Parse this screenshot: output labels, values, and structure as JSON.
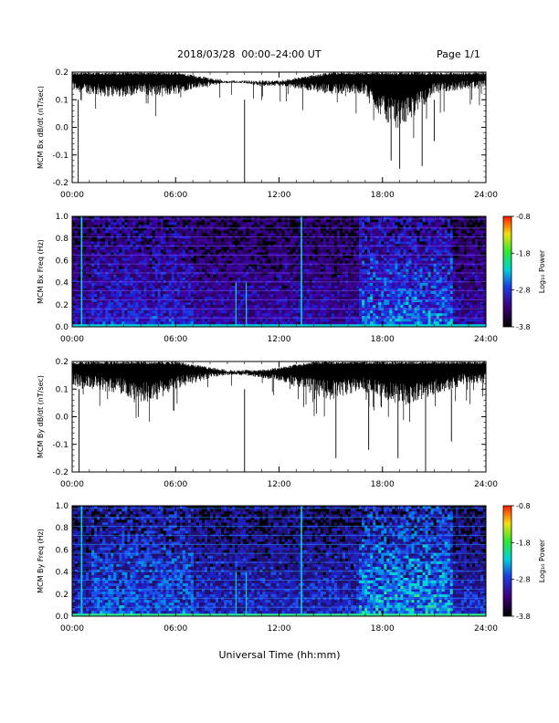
{
  "header": {
    "date_range": "2018/03/28  00:00–24:00 UT",
    "page": "Page 1/1"
  },
  "xlabel": "Universal Time (hh:mm)",
  "colors": {
    "trace": "#000000",
    "accent_line": "#00d8d8",
    "background": "#ffffff"
  },
  "chart_data": [
    {
      "type": "line",
      "id": "bx_dbdt",
      "ylabel": "MCM Bx dB/dt (nT/sec)",
      "xlim": [
        0,
        24
      ],
      "ylim": [
        -0.2,
        0.2
      ],
      "x_ticks": [
        "00:00",
        "06:00",
        "12:00",
        "18:00",
        "24:00"
      ],
      "y_ticks": [
        "-0.2",
        "-0.1",
        "0.0",
        "0.1",
        "0.2"
      ],
      "grid": false,
      "series": [
        {
          "x": [
            0,
            0.5,
            1,
            2,
            3,
            4,
            5,
            6,
            7,
            8,
            9,
            10,
            11,
            12,
            13,
            14,
            15,
            16,
            17,
            18,
            19,
            20,
            21,
            22,
            23,
            24
          ],
          "y_upper": [
            0.2,
            0.2,
            0.2,
            0.2,
            0.2,
            0.2,
            0.2,
            0.2,
            0.19,
            0.18,
            0.17,
            0.17,
            0.17,
            0.17,
            0.18,
            0.19,
            0.2,
            0.2,
            0.2,
            0.2,
            0.2,
            0.2,
            0.2,
            0.2,
            0.2,
            0.2
          ],
          "y_lower": [
            0.14,
            0.12,
            0.12,
            0.11,
            0.11,
            0.12,
            0.11,
            0.12,
            0.14,
            0.15,
            0.16,
            0.16,
            0.15,
            0.15,
            0.14,
            0.13,
            0.12,
            0.12,
            0.12,
            0.03,
            0.0,
            0.05,
            0.12,
            0.13,
            0.14,
            0.14
          ]
        }
      ]
    },
    {
      "type": "heatmap",
      "id": "bx_spec",
      "ylabel": "MCM Bx Freq (Hz)",
      "xlim": [
        0,
        24
      ],
      "ylim": [
        0.0,
        1.0
      ],
      "x_ticks": [
        "00:00",
        "06:00",
        "12:00",
        "18:00",
        "24:00"
      ],
      "y_ticks": [
        "0.0",
        "0.2",
        "0.4",
        "0.6",
        "0.8",
        "1.0"
      ],
      "colorbar": {
        "label": "Log₁₀ Power",
        "range": [
          -3.8,
          -0.8
        ],
        "ticks": [
          "-0.8",
          "-1.8",
          "-2.8",
          "-3.8"
        ]
      }
    },
    {
      "type": "line",
      "id": "by_dbdt",
      "ylabel": "MCM By dB/dt (nT/sec)",
      "xlim": [
        0,
        24
      ],
      "ylim": [
        -0.2,
        0.2
      ],
      "x_ticks": [
        "00:00",
        "06:00",
        "12:00",
        "18:00",
        "24:00"
      ],
      "y_ticks": [
        "-0.2",
        "-0.1",
        "0.0",
        "0.1",
        "0.2"
      ],
      "grid": false,
      "series": [
        {
          "x": [
            0,
            0.5,
            1,
            2,
            3,
            4,
            5,
            6,
            7,
            8,
            9,
            10,
            11,
            12,
            13,
            14,
            15,
            16,
            17,
            18,
            19,
            20,
            21,
            22,
            23,
            24
          ],
          "y_upper": [
            0.2,
            0.2,
            0.2,
            0.2,
            0.2,
            0.2,
            0.2,
            0.2,
            0.19,
            0.18,
            0.17,
            0.17,
            0.17,
            0.18,
            0.19,
            0.2,
            0.2,
            0.2,
            0.2,
            0.2,
            0.2,
            0.2,
            0.2,
            0.2,
            0.2,
            0.2
          ],
          "y_lower": [
            0.12,
            0.1,
            0.1,
            0.09,
            0.08,
            0.05,
            0.06,
            0.1,
            0.12,
            0.14,
            0.15,
            0.15,
            0.14,
            0.13,
            0.11,
            0.08,
            0.06,
            0.08,
            0.09,
            0.06,
            0.04,
            0.05,
            0.08,
            0.1,
            0.12,
            0.12
          ]
        }
      ]
    },
    {
      "type": "heatmap",
      "id": "by_spec",
      "ylabel": "MCM By Freq (Hz)",
      "xlim": [
        0,
        24
      ],
      "ylim": [
        0.0,
        1.0
      ],
      "x_ticks": [
        "00:00",
        "06:00",
        "12:00",
        "18:00",
        "24:00"
      ],
      "y_ticks": [
        "0.0",
        "0.2",
        "0.4",
        "0.6",
        "0.8",
        "1.0"
      ],
      "colorbar": {
        "label": "Log₁₀ Power",
        "range": [
          -3.8,
          -0.8
        ],
        "ticks": [
          "-0.8",
          "-1.8",
          "-2.8",
          "-3.8"
        ]
      }
    }
  ]
}
